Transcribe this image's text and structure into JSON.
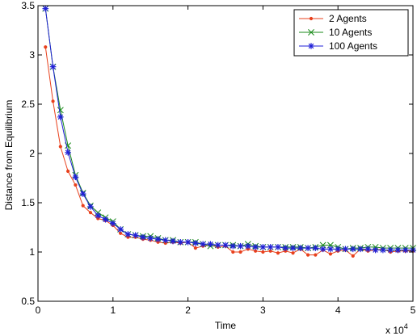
{
  "chart_data": {
    "type": "line",
    "title": "",
    "xlabel": "Time",
    "ylabel": "Distance from Equilibrium",
    "xlim": [
      0,
      5
    ],
    "ylim": [
      0.5,
      3.5
    ],
    "x_exponent_label": "x 10",
    "x_exponent_power": "4",
    "x_ticks": [
      "0",
      "1",
      "2",
      "3",
      "4",
      "5"
    ],
    "y_ticks": [
      "0.5",
      "1",
      "1.5",
      "2",
      "2.5",
      "3",
      "3.5"
    ],
    "legend_position": "top-right",
    "grid": false,
    "x": [
      0.1,
      0.2,
      0.3,
      0.4,
      0.5,
      0.6,
      0.7,
      0.8,
      0.9,
      1.0,
      1.1,
      1.2,
      1.3,
      1.4,
      1.5,
      1.6,
      1.7,
      1.8,
      1.9,
      2.0,
      2.1,
      2.2,
      2.3,
      2.4,
      2.5,
      2.6,
      2.7,
      2.8,
      2.9,
      3.0,
      3.1,
      3.2,
      3.3,
      3.4,
      3.5,
      3.6,
      3.7,
      3.8,
      3.9,
      4.0,
      4.1,
      4.2,
      4.3,
      4.4,
      4.5,
      4.6,
      4.7,
      4.8,
      4.9,
      5.0
    ],
    "series": [
      {
        "name": "2 Agents",
        "color": "#e8401c",
        "marker": "dot",
        "values": [
          3.08,
          2.53,
          2.07,
          1.82,
          1.68,
          1.47,
          1.4,
          1.34,
          1.32,
          1.27,
          1.19,
          1.15,
          1.15,
          1.13,
          1.12,
          1.1,
          1.09,
          1.1,
          1.09,
          1.1,
          1.04,
          1.06,
          1.07,
          1.05,
          1.06,
          1.0,
          1.0,
          1.03,
          1.01,
          1.0,
          1.01,
          0.99,
          1.01,
          0.99,
          1.03,
          0.97,
          0.97,
          1.02,
          0.98,
          1.01,
          1.02,
          0.96,
          1.03,
          1.01,
          1.02,
          1.03,
          1.0,
          1.01,
          1.01,
          1.01
        ]
      },
      {
        "name": "10 Agents",
        "color": "#1a8a1a",
        "marker": "x",
        "values": [
          3.47,
          2.88,
          2.44,
          2.08,
          1.78,
          1.6,
          1.47,
          1.4,
          1.35,
          1.31,
          1.23,
          1.18,
          1.17,
          1.16,
          1.16,
          1.14,
          1.12,
          1.12,
          1.1,
          1.1,
          1.1,
          1.08,
          1.06,
          1.07,
          1.07,
          1.07,
          1.06,
          1.08,
          1.06,
          1.05,
          1.05,
          1.05,
          1.05,
          1.05,
          1.05,
          1.04,
          1.05,
          1.07,
          1.07,
          1.05,
          1.03,
          1.04,
          1.04,
          1.05,
          1.05,
          1.04,
          1.04,
          1.04,
          1.04,
          1.04
        ]
      },
      {
        "name": "100 Agents",
        "color": "#2020d8",
        "marker": "star",
        "values": [
          3.47,
          2.88,
          2.37,
          2.01,
          1.76,
          1.59,
          1.46,
          1.37,
          1.33,
          1.29,
          1.23,
          1.18,
          1.17,
          1.15,
          1.14,
          1.13,
          1.12,
          1.11,
          1.1,
          1.1,
          1.09,
          1.08,
          1.08,
          1.07,
          1.07,
          1.06,
          1.06,
          1.06,
          1.05,
          1.05,
          1.05,
          1.05,
          1.04,
          1.04,
          1.04,
          1.04,
          1.04,
          1.03,
          1.03,
          1.03,
          1.03,
          1.03,
          1.03,
          1.03,
          1.02,
          1.02,
          1.02,
          1.02,
          1.02,
          1.02
        ]
      }
    ]
  }
}
